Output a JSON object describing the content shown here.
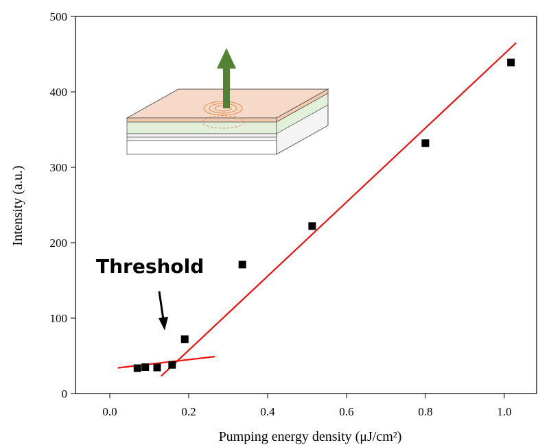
{
  "chart_data": {
    "type": "scatter",
    "xlabel": "Pumping energy density (μJ/cm²)",
    "ylabel": "Intensity (a.u.)",
    "annotation": "Threshold",
    "xlim": [
      -0.087,
      1.082
    ],
    "ylim": [
      0,
      500
    ],
    "xticks": [
      {
        "value": 0,
        "label": "0.0"
      },
      {
        "value": 0.2,
        "label": "0.2"
      },
      {
        "value": 0.4,
        "label": "0.4"
      },
      {
        "value": 0.6,
        "label": "0.6"
      },
      {
        "value": 0.8,
        "label": "0.8"
      },
      {
        "value": 1.0,
        "label": "1.0"
      }
    ],
    "yticks": [
      0,
      100,
      200,
      300,
      400,
      500
    ],
    "points": {
      "color": "#000000",
      "x": [
        0.07,
        0.09,
        0.12,
        0.158,
        0.19,
        0.336,
        0.513,
        0.8,
        1.017
      ],
      "y": [
        33.6,
        35,
        34.5,
        38,
        72,
        171,
        222,
        332,
        439
      ]
    },
    "fits": [
      {
        "color": "#ee1111",
        "x": [
          0.02,
          0.266
        ],
        "y": [
          34,
          49
        ]
      },
      {
        "color": "#ee1111",
        "x": [
          0.13,
          1.03
        ],
        "y": [
          23,
          465
        ]
      }
    ]
  }
}
